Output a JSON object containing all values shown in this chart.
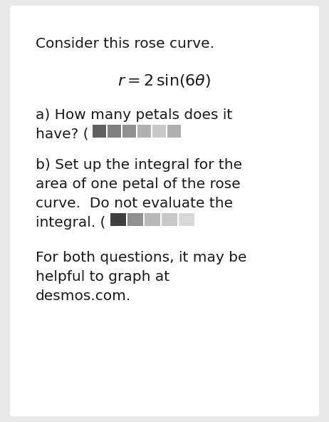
{
  "background_color": "#e8e8e8",
  "card_color": "#ffffff",
  "text_color": "#1a1a1a",
  "title_text": "Consider this rose curve.",
  "part_a_line1": "a) How many petals does it",
  "part_a_line2": "have? (",
  "part_b_line1": "b) Set up the integral for the",
  "part_b_line2": "area of one petal of the rose",
  "part_b_line3": "curve.  Do not evaluate the",
  "part_b_line4": "integral. (",
  "footer_line1": "For both questions, it may be",
  "footer_line2": "helpful to graph at",
  "footer_line3": "desmos.com.",
  "font_size_body": 14.5,
  "font_size_formula": 15,
  "font_size_title": 14.5,
  "redact_colors_a": [
    "#606060",
    "#808080",
    "#909090",
    "#b0b0b0",
    "#c8c8c8",
    "#b0b0b0"
  ],
  "redact_colors_b": [
    "#404040",
    "#909090",
    "#b8b8b8",
    "#c8c8c8",
    "#d8d8d8"
  ]
}
